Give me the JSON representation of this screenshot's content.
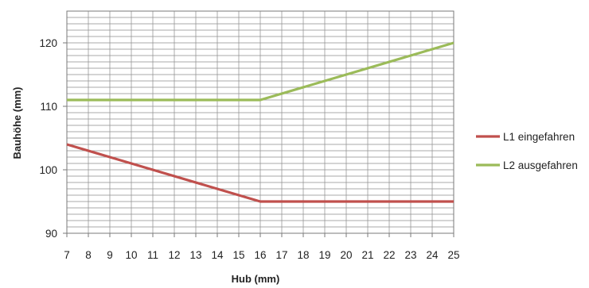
{
  "chart_data": {
    "type": "line",
    "title": "",
    "xlabel": "Hub (mm)",
    "ylabel": "Bauhöhe (mm)",
    "xlim": [
      7,
      25
    ],
    "ylim": [
      90,
      125
    ],
    "x_ticks": [
      "7",
      "8",
      "9",
      "10",
      "11",
      "12",
      "13",
      "14",
      "15",
      "16",
      "17",
      "18",
      "19",
      "20",
      "21",
      "22",
      "23",
      "24",
      "25"
    ],
    "y_ticks": [
      "90",
      "100",
      "110",
      "120"
    ],
    "grid": true,
    "legend_position": "right",
    "series": [
      {
        "name": "L1 eingefahren",
        "color": "#c0504d",
        "x": [
          7,
          16,
          25
        ],
        "y": [
          104,
          95,
          95
        ]
      },
      {
        "name": "L2 ausgefahren",
        "color": "#9bbb59",
        "x": [
          7,
          16,
          25
        ],
        "y": [
          111,
          111,
          120
        ]
      }
    ]
  }
}
